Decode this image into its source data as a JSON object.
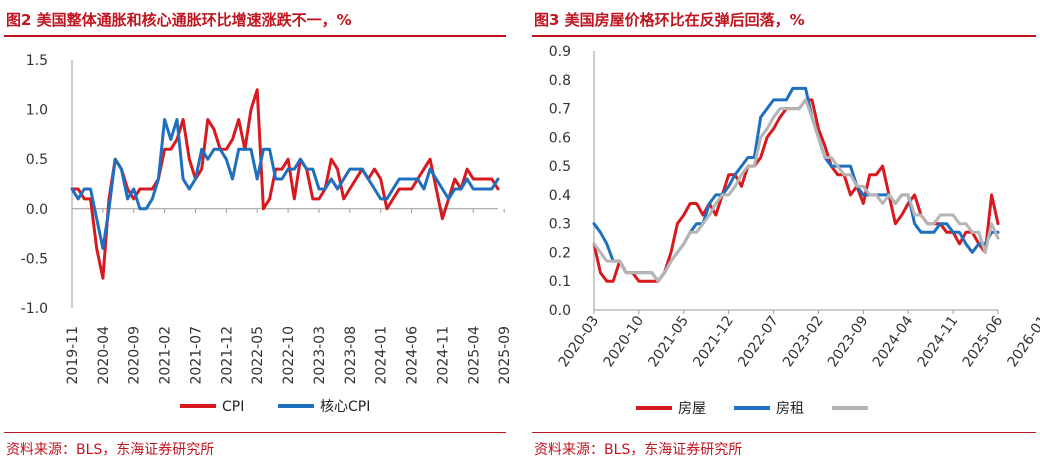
{
  "left": {
    "title": "图2  美国整体通胀和核心通胀环比增速涨跌不一，%",
    "source": "资料来源：BLS，东海证券研究所"
  },
  "right": {
    "title": "图3  美国房屋价格环比在反弹后回落，%",
    "source": "资料来源：BLS，东海证券研究所"
  },
  "colors": {
    "accent": "#c0151f",
    "red_series": "#d71920",
    "blue_series": "#1f6fbf",
    "gray_series": "#b5b5b5"
  },
  "chart_data": [
    {
      "type": "line",
      "title": "图2  美国整体通胀和核心通胀环比增速涨跌不一，%",
      "ylim": [
        -1.0,
        1.5
      ],
      "yticks": [
        "1.5",
        "1.0",
        "0.5",
        "0.0",
        "-0.5",
        "-1.0"
      ],
      "x_tick_labels": [
        "2019-11",
        "2020-04",
        "2020-09",
        "2021-02",
        "2021-07",
        "2021-12",
        "2022-05",
        "2022-10",
        "2023-03",
        "2023-08",
        "2024-01",
        "2024-06",
        "2024-11",
        "2025-04",
        "2025-09"
      ],
      "x_start": "2019-11",
      "legend": "bottom",
      "series": [
        {
          "name": "CPI",
          "color": "#d71920",
          "values": [
            0.2,
            0.2,
            0.1,
            0.1,
            -0.4,
            -0.7,
            0.1,
            0.5,
            0.4,
            0.2,
            0.1,
            0.2,
            0.2,
            0.2,
            0.3,
            0.6,
            0.6,
            0.7,
            0.9,
            0.5,
            0.3,
            0.4,
            0.9,
            0.8,
            0.6,
            0.6,
            0.7,
            0.9,
            0.6,
            1.0,
            1.2,
            0.0,
            0.1,
            0.4,
            0.4,
            0.5,
            0.1,
            0.5,
            0.4,
            0.1,
            0.1,
            0.2,
            0.5,
            0.4,
            0.1,
            0.2,
            0.3,
            0.4,
            0.3,
            0.4,
            0.3,
            0.0,
            0.1,
            0.2,
            0.2,
            0.2,
            0.3,
            0.4,
            0.5,
            0.2,
            -0.1,
            0.1,
            0.3,
            0.2,
            0.4,
            0.3,
            0.3,
            0.3,
            0.3,
            0.2
          ]
        },
        {
          "name": "核心CPI",
          "color": "#1f6fbf",
          "values": [
            0.2,
            0.1,
            0.2,
            0.2,
            -0.1,
            -0.4,
            0.0,
            0.5,
            0.4,
            0.1,
            0.2,
            0.0,
            0.0,
            0.1,
            0.3,
            0.9,
            0.7,
            0.9,
            0.3,
            0.2,
            0.3,
            0.6,
            0.5,
            0.6,
            0.6,
            0.5,
            0.3,
            0.6,
            0.6,
            0.6,
            0.3,
            0.6,
            0.6,
            0.3,
            0.3,
            0.4,
            0.4,
            0.5,
            0.4,
            0.4,
            0.2,
            0.2,
            0.3,
            0.2,
            0.3,
            0.4,
            0.4,
            0.4,
            0.3,
            0.2,
            0.1,
            0.1,
            0.2,
            0.3,
            0.3,
            0.3,
            0.3,
            0.2,
            0.4,
            0.3,
            0.2,
            0.1,
            0.2,
            0.2,
            0.3,
            0.2,
            0.2,
            0.2,
            0.2,
            0.3
          ]
        }
      ]
    },
    {
      "type": "line",
      "title": "图3  美国房屋价格环比在反弹后回落，%",
      "ylim": [
        0.0,
        0.9
      ],
      "yticks": [
        "0.9",
        "0.8",
        "0.7",
        "0.6",
        "0.5",
        "0.4",
        "0.3",
        "0.2",
        "0.1",
        "0.0"
      ],
      "x_tick_labels": [
        "2020-03",
        "2020-10",
        "2021-05",
        "2021-12",
        "2022-07",
        "2023-02",
        "2023-09",
        "2024-04",
        "2024-11",
        "2025-06",
        "2026-01"
      ],
      "x_start": "2020-03",
      "legend": "bottom",
      "series": [
        {
          "name": "房屋",
          "color": "#d71920",
          "values": [
            0.23,
            0.13,
            0.1,
            0.1,
            0.17,
            0.13,
            0.13,
            0.1,
            0.1,
            0.1,
            0.1,
            0.13,
            0.2,
            0.3,
            0.33,
            0.37,
            0.37,
            0.33,
            0.37,
            0.33,
            0.4,
            0.47,
            0.47,
            0.43,
            0.5,
            0.5,
            0.53,
            0.6,
            0.63,
            0.67,
            0.7,
            0.7,
            0.7,
            0.73,
            0.73,
            0.63,
            0.57,
            0.5,
            0.47,
            0.47,
            0.4,
            0.43,
            0.37,
            0.47,
            0.47,
            0.5,
            0.4,
            0.3,
            0.33,
            0.37,
            0.4,
            0.33,
            0.3,
            0.3,
            0.3,
            0.27,
            0.27,
            0.23,
            0.27,
            0.27,
            0.23,
            0.2,
            0.4,
            0.3
          ]
        },
        {
          "name": "房租",
          "color": "#1f6fbf",
          "values": [
            0.3,
            0.27,
            0.23,
            0.17,
            0.17,
            0.13,
            0.13,
            0.13,
            0.13,
            0.13,
            0.1,
            0.13,
            0.17,
            0.2,
            0.23,
            0.27,
            0.3,
            0.3,
            0.37,
            0.4,
            0.4,
            0.43,
            0.47,
            0.5,
            0.53,
            0.53,
            0.67,
            0.7,
            0.73,
            0.73,
            0.73,
            0.77,
            0.77,
            0.77,
            0.67,
            0.6,
            0.53,
            0.5,
            0.5,
            0.5,
            0.5,
            0.43,
            0.4,
            0.4,
            0.4,
            0.4,
            0.4,
            0.37,
            0.4,
            0.4,
            0.3,
            0.27,
            0.27,
            0.27,
            0.3,
            0.3,
            0.27,
            0.27,
            0.23,
            0.2,
            0.23,
            0.23,
            0.27,
            0.27
          ]
        },
        {
          "color": "#b5b5b5",
          "values": [
            0.23,
            0.2,
            0.17,
            0.17,
            0.17,
            0.13,
            0.13,
            0.13,
            0.13,
            0.13,
            0.1,
            0.13,
            0.17,
            0.2,
            0.23,
            0.27,
            0.27,
            0.3,
            0.33,
            0.37,
            0.4,
            0.4,
            0.43,
            0.47,
            0.5,
            0.5,
            0.6,
            0.63,
            0.67,
            0.7,
            0.7,
            0.7,
            0.7,
            0.73,
            0.67,
            0.6,
            0.53,
            0.53,
            0.5,
            0.47,
            0.47,
            0.43,
            0.43,
            0.4,
            0.4,
            0.37,
            0.4,
            0.37,
            0.4,
            0.4,
            0.33,
            0.33,
            0.3,
            0.3,
            0.33,
            0.33,
            0.33,
            0.3,
            0.3,
            0.27,
            0.27,
            0.2,
            0.3,
            0.25
          ]
        }
      ]
    }
  ]
}
